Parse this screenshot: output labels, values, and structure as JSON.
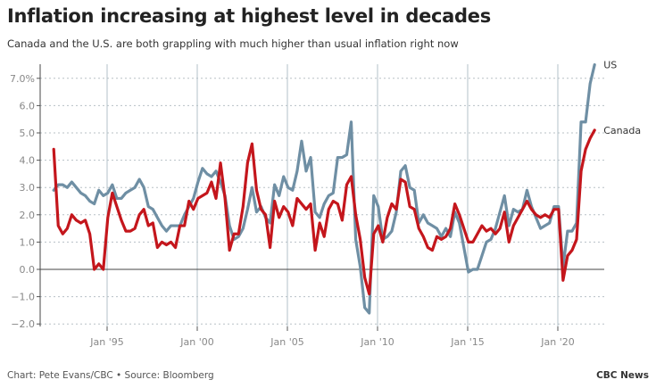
{
  "chart_data": {
    "type": "line",
    "title": "Inflation increasing at highest level in decades",
    "subtitle": "Canada and the U.S. are both grappling with much higher than usual inflation right now",
    "xlabel": "",
    "ylabel": "",
    "x_start": "Jan 1992",
    "x_frequency": "quarterly",
    "xlim": [
      1991.75,
      2022.5
    ],
    "ylim": [
      -2.0,
      7.5
    ],
    "y_ticks": [
      -2,
      -1,
      0,
      1,
      2,
      3,
      4,
      5,
      6,
      7
    ],
    "y_tick_labels": [
      "−2.0",
      "−1.0",
      "0.0",
      "1.0",
      "2.0",
      "3.0",
      "4.0",
      "5.0",
      "6.0",
      "7.0%"
    ],
    "x_ticks": [
      1995,
      2000,
      2005,
      2010,
      2015,
      2020
    ],
    "x_tick_labels": [
      "Jan '95",
      "Jan '00",
      "Jan '05",
      "Jan '10",
      "Jan '15",
      "Jan '20"
    ],
    "grid": "horizontal dashed, vertical at x ticks",
    "legend": "direct labels at line ends (right)",
    "series": [
      {
        "name": "US",
        "color": "#6f8fa4",
        "values": [
          2.9,
          3.1,
          3.1,
          3.0,
          3.2,
          3.0,
          2.8,
          2.7,
          2.5,
          2.4,
          2.9,
          2.7,
          2.8,
          3.1,
          2.6,
          2.6,
          2.8,
          2.9,
          3.0,
          3.3,
          3.0,
          2.3,
          2.2,
          1.9,
          1.6,
          1.4,
          1.6,
          1.6,
          1.6,
          2.0,
          2.3,
          2.6,
          3.2,
          3.7,
          3.5,
          3.4,
          3.6,
          3.2,
          2.7,
          1.6,
          1.1,
          1.2,
          1.5,
          2.2,
          3.0,
          2.1,
          2.3,
          1.9,
          1.7,
          3.1,
          2.7,
          3.4,
          3.0,
          2.9,
          3.6,
          4.7,
          3.6,
          4.1,
          2.1,
          1.9,
          2.4,
          2.7,
          2.8,
          4.1,
          4.1,
          4.2,
          5.4,
          1.1,
          0.1,
          -1.4,
          -1.6,
          2.7,
          2.3,
          1.1,
          1.2,
          1.4,
          2.1,
          3.6,
          3.8,
          3.0,
          2.9,
          1.7,
          2.0,
          1.7,
          1.6,
          1.5,
          1.2,
          1.5,
          1.2,
          2.1,
          1.7,
          0.8,
          -0.1,
          0.0,
          0.0,
          0.5,
          1.0,
          1.1,
          1.5,
          2.1,
          2.7,
          1.6,
          2.2,
          2.1,
          2.2,
          2.9,
          2.3,
          1.9,
          1.5,
          1.6,
          1.7,
          2.3,
          2.3,
          0.1,
          1.4,
          1.4,
          1.7,
          5.4,
          5.4,
          6.8,
          7.5
        ]
      },
      {
        "name": "Canada",
        "color": "#c4161c",
        "values": [
          4.4,
          1.6,
          1.3,
          1.5,
          2.0,
          1.8,
          1.7,
          1.8,
          1.3,
          0.0,
          0.2,
          0.0,
          1.9,
          2.8,
          2.3,
          1.8,
          1.4,
          1.4,
          1.5,
          2.0,
          2.2,
          1.6,
          1.7,
          0.8,
          1.0,
          0.9,
          1.0,
          0.8,
          1.6,
          1.6,
          2.5,
          2.2,
          2.6,
          2.7,
          2.8,
          3.2,
          2.6,
          3.9,
          2.6,
          0.7,
          1.3,
          1.3,
          2.3,
          3.9,
          4.6,
          2.9,
          2.2,
          2.0,
          0.8,
          2.5,
          1.9,
          2.3,
          2.1,
          1.6,
          2.6,
          2.4,
          2.2,
          2.4,
          0.7,
          1.7,
          1.2,
          2.2,
          2.5,
          2.4,
          1.8,
          3.1,
          3.4,
          2.0,
          1.1,
          -0.3,
          -0.9,
          1.3,
          1.6,
          1.0,
          1.9,
          2.4,
          2.2,
          3.3,
          3.2,
          2.3,
          2.2,
          1.5,
          1.2,
          0.8,
          0.7,
          1.2,
          1.1,
          1.2,
          1.5,
          2.4,
          2.0,
          1.5,
          1.0,
          1.0,
          1.3,
          1.6,
          1.4,
          1.5,
          1.3,
          1.5,
          2.1,
          1.0,
          1.6,
          1.9,
          2.2,
          2.5,
          2.2,
          2.0,
          1.9,
          2.0,
          1.9,
          2.2,
          2.2,
          -0.4,
          0.5,
          0.7,
          1.1,
          3.6,
          4.4,
          4.8,
          5.1
        ]
      }
    ],
    "source": "Chart: Pete Evans/CBC • Source: Bloomberg",
    "credit": "CBC News"
  }
}
